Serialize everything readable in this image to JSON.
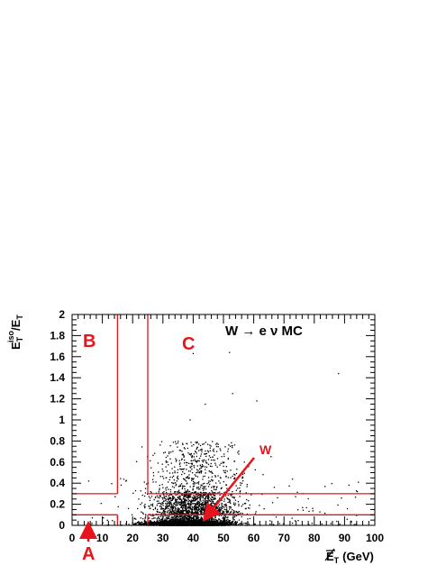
{
  "chart_data": {
    "type": "scatter",
    "title": "W → e ν MC",
    "xlabel": "E̸T (GeV)",
    "ylabel": "E_T^iso/E_T",
    "xlim": [
      0,
      100
    ],
    "ylim": [
      0,
      2
    ],
    "xticks": [
      "0",
      "10",
      "20",
      "30",
      "40",
      "50",
      "60",
      "70",
      "80",
      "90",
      "100"
    ],
    "yticks": [
      "0",
      "0.2",
      "0.4",
      "0.6",
      "0.8",
      "1",
      "1.2",
      "1.4",
      "1.6",
      "1.8",
      "2"
    ],
    "regions": [
      {
        "name": "A",
        "x": [
          0,
          15
        ],
        "y": [
          0,
          0.1
        ]
      },
      {
        "name": "B",
        "x": [
          0,
          15
        ],
        "y": [
          0.3,
          2
        ]
      },
      {
        "name": "C",
        "x": [
          25,
          100
        ],
        "y": [
          0.3,
          2
        ]
      },
      {
        "name": "W",
        "x": [
          25,
          100
        ],
        "y": [
          0,
          0.1
        ]
      }
    ],
    "region_boundaries": {
      "x_low": 15,
      "x_high": 25,
      "y_low": 0.1,
      "y_high": 0.3
    },
    "isolated_points": [
      {
        "x": 40,
        "y": 1.63
      },
      {
        "x": 52,
        "y": 1.64
      },
      {
        "x": 88,
        "y": 1.44
      },
      {
        "x": 53,
        "y": 1.25
      },
      {
        "x": 44,
        "y": 1.15
      },
      {
        "x": 39,
        "y": 1.0
      },
      {
        "x": 61,
        "y": 1.18
      }
    ],
    "distribution_note": "dense points near y=0 for x 10-65, sparse cloud up to y~0.8",
    "colors": {
      "points": "#000000",
      "regions": "#e8141b"
    }
  },
  "labels": {
    "title": "W → e ν MC",
    "region_a": "A",
    "region_b": "B",
    "region_c": "C",
    "region_w": "W",
    "xlabel_main": "E",
    "xlabel_sub": "T",
    "xlabel_units": "(GeV)",
    "ylabel_e1": "E",
    "ylabel_sub1": "T",
    "ylabel_sup": "iso",
    "ylabel_slash": "/E",
    "ylabel_sub2": "T"
  }
}
